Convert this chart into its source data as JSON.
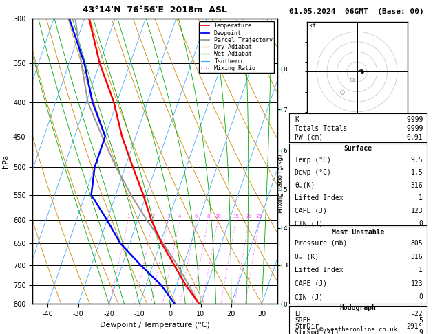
{
  "title": "43°14'N  76°56'E  2018m  ASL",
  "date_str": "01.05.2024  06GMT  (Base: 00)",
  "xlabel": "Dewpoint / Temperature (°C)",
  "ylabel_left": "hPa",
  "temp_color": "#ff0000",
  "dewp_color": "#0000ff",
  "parcel_color": "#999999",
  "dry_adiabat_color": "#cc8800",
  "wet_adiabat_color": "#00aa00",
  "isotherm_color": "#44aaff",
  "mixing_ratio_color": "#ff44ff",
  "pressure_ticks": [
    300,
    350,
    400,
    450,
    500,
    550,
    600,
    650,
    700,
    750,
    800
  ],
  "temp_data": {
    "pressure": [
      800,
      780,
      750,
      700,
      650,
      600,
      550,
      500,
      450,
      400,
      350,
      300
    ],
    "temperature": [
      9.5,
      7.0,
      3.0,
      -3.0,
      -9.5,
      -15.5,
      -21.0,
      -27.5,
      -34.5,
      -41.0,
      -50.0,
      -58.5
    ]
  },
  "dewp_data": {
    "pressure": [
      800,
      780,
      750,
      700,
      650,
      600,
      550,
      500,
      450,
      400,
      350,
      300
    ],
    "dewpoint": [
      1.5,
      -1.0,
      -5.0,
      -14.0,
      -23.0,
      -30.0,
      -38.0,
      -40.0,
      -40.0,
      -48.0,
      -55.0,
      -65.0
    ]
  },
  "parcel_data": {
    "pressure": [
      800,
      750,
      700,
      650,
      600,
      550,
      500,
      450,
      400,
      350,
      300
    ],
    "temperature": [
      9.5,
      4.0,
      -2.0,
      -9.0,
      -17.0,
      -25.0,
      -33.0,
      -41.0,
      -49.5,
      -56.0,
      -63.0
    ]
  },
  "xlim": [
    -45,
    35
  ],
  "pmin": 300,
  "pmax": 800,
  "mixing_ratios": [
    1,
    2,
    3,
    4,
    6,
    8,
    10,
    15,
    20,
    25
  ],
  "mixing_ratio_labels": [
    "1",
    "2",
    "3",
    "4",
    "6",
    "8",
    "10",
    "15",
    "20",
    "25"
  ],
  "km_levels": [
    {
      "km": "0",
      "p": 800
    },
    {
      "km": "8",
      "p": 357
    },
    {
      "km": "7",
      "p": 410
    },
    {
      "km": "6",
      "p": 472
    },
    {
      "km": "5",
      "p": 540
    },
    {
      "km": "4",
      "p": 616
    },
    {
      "km": "3LCL",
      "p": 700
    }
  ],
  "km_colors": [
    "#00cccc",
    "#00cccc",
    "#00cccc",
    "#00cccc",
    "#00cccc",
    "#00cccc",
    "#88cc00"
  ],
  "copyright": "© weatheronline.co.uk",
  "background_color": "#ffffff"
}
